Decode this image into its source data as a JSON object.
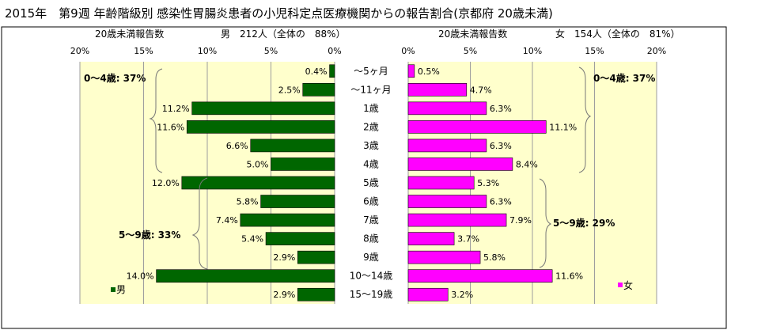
{
  "title": "2015年　第9週 年齢階級別 感染性胃腸炎患者の小児科定点医療機関からの報告割合(京都府 20歳未満)",
  "colors": {
    "male": "#006600",
    "female": "#ff00ff",
    "plot_bg": "#ffffcc",
    "grid": "#9e9e9e"
  },
  "chart_data": [
    {
      "type": "bar",
      "orientation": "horizontal",
      "side": "male",
      "header_left": "20歳未満報告数",
      "header_right": "男　212人（全体の　88%）",
      "legend": "男",
      "xlim": [
        0,
        20
      ],
      "x_direction": "reversed",
      "ticks": [
        "20%",
        "15%",
        "10%",
        "5%",
        "0%"
      ],
      "categories": [
        "～5ヶ月",
        "～11ヶ月",
        "1歳",
        "2歳",
        "3歳",
        "4歳",
        "5歳",
        "6歳",
        "7歳",
        "8歳",
        "9歳",
        "10～14歳",
        "15～19歳"
      ],
      "values": [
        0.4,
        2.5,
        11.2,
        11.6,
        6.6,
        5.0,
        12.0,
        5.8,
        7.4,
        5.4,
        2.9,
        14.0,
        2.9
      ],
      "value_labels": [
        "0.4%",
        "2.5%",
        "11.2%",
        "11.6%",
        "6.6%",
        "5.0%",
        "12.0%",
        "5.8%",
        "7.4%",
        "5.4%",
        "2.9%",
        "14.0%",
        "2.9%"
      ],
      "annotations": [
        "0～4歳: 37%",
        "5～9歳: 33%"
      ]
    },
    {
      "type": "bar",
      "orientation": "horizontal",
      "side": "female",
      "header_left": "20歳未満報告数",
      "header_right": "女　154人（全体の　81%）",
      "legend": "女",
      "xlim": [
        0,
        20
      ],
      "ticks": [
        "0%",
        "5%",
        "10%",
        "15%",
        "20%"
      ],
      "categories": [
        "～5ヶ月",
        "～11ヶ月",
        "1歳",
        "2歳",
        "3歳",
        "4歳",
        "5歳",
        "6歳",
        "7歳",
        "8歳",
        "9歳",
        "10～14歳",
        "15～19歳"
      ],
      "values": [
        0.5,
        4.7,
        6.3,
        11.1,
        6.3,
        8.4,
        5.3,
        6.3,
        7.9,
        3.7,
        5.8,
        11.6,
        3.2
      ],
      "value_labels": [
        "0.5%",
        "4.7%",
        "6.3%",
        "11.1%",
        "6.3%",
        "8.4%",
        "5.3%",
        "6.3%",
        "7.9%",
        "3.7%",
        "5.8%",
        "11.6%",
        "3.2%"
      ],
      "annotations": [
        "0～4歳: 37%",
        "5～9歳: 29%"
      ]
    }
  ]
}
